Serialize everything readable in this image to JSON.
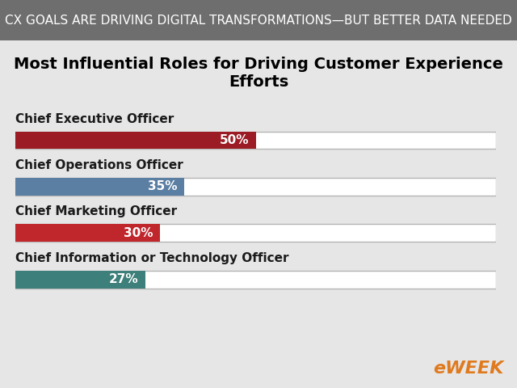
{
  "chart_data": {
    "type": "bar",
    "orientation": "horizontal",
    "subtitle": "CX GOALS ARE DRIVING DIGITAL TRANSFORMATIONS—BUT BETTER DATA NEEDED",
    "title": "Most Influential Roles for Driving Customer Experience Efforts",
    "categories": [
      "Chief Executive Officer",
      "Chief Operations Officer",
      "Chief Marketing Officer",
      "Chief Information or Technology Officer"
    ],
    "values": [
      50,
      35,
      30,
      27
    ],
    "value_labels": [
      "50%",
      "35%",
      "30%",
      "27%"
    ],
    "colors": [
      "#9b1c24",
      "#5b7fa3",
      "#c0272d",
      "#3d7f7a"
    ],
    "xlim": [
      0,
      100
    ],
    "xticks": [],
    "grid": false,
    "data_labels": true,
    "tick_labels": false,
    "annotations": [
      "eWEEK"
    ]
  }
}
